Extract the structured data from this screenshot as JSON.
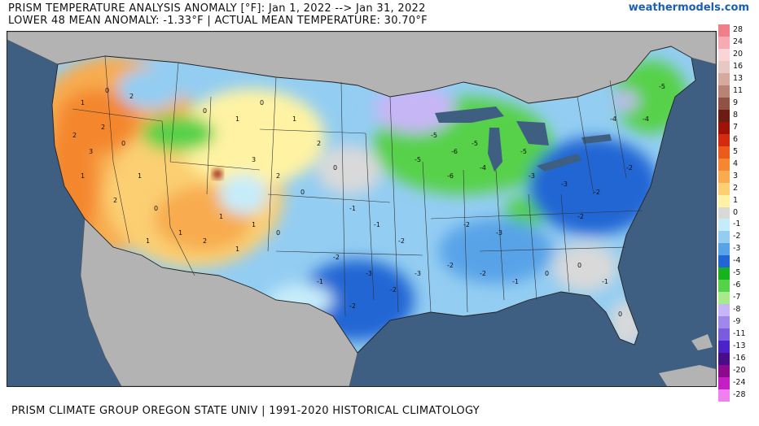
{
  "header": {
    "title": "PRISM TEMPERATURE ANALYSIS ANOMALY [°F]: Jan 1, 2022 --> Jan 31, 2022",
    "subtitle": "LOWER 48 MEAN ANOMALY: -1.33°F | ACTUAL MEAN TEMPERATURE: 30.70°F",
    "brand": "weathermodels.com"
  },
  "footer": {
    "text": "PRISM CLIMATE GROUP OREGON STATE UNIV | 1991-2020 HISTORICAL CLIMATOLOGY"
  },
  "legend": {
    "items": [
      {
        "label": "28",
        "color": "#f07f8a"
      },
      {
        "label": "24",
        "color": "#f6aab1"
      },
      {
        "label": "20",
        "color": "#fbd4d8"
      },
      {
        "label": "16",
        "color": "#e6c9c2"
      },
      {
        "label": "13",
        "color": "#d4a99e"
      },
      {
        "label": "11",
        "color": "#b88275"
      },
      {
        "label": "9",
        "color": "#8f5244"
      },
      {
        "label": "8",
        "color": "#6b1d14"
      },
      {
        "label": "7",
        "color": "#9e1208"
      },
      {
        "label": "6",
        "color": "#d42a10"
      },
      {
        "label": "5",
        "color": "#ec5b19"
      },
      {
        "label": "4",
        "color": "#f4872f"
      },
      {
        "label": "3",
        "color": "#f8ac4f"
      },
      {
        "label": "2",
        "color": "#fbcf72"
      },
      {
        "label": "1",
        "color": "#fff3a3"
      },
      {
        "label": "0",
        "color": "#d9d9d9"
      },
      {
        "label": "-1",
        "color": "#c6ecfa"
      },
      {
        "label": "-2",
        "color": "#93cdf2"
      },
      {
        "label": "-3",
        "color": "#58a3e8"
      },
      {
        "label": "-4",
        "color": "#2166d4"
      },
      {
        "label": "-5",
        "color": "#16b31e"
      },
      {
        "label": "-6",
        "color": "#56d14a"
      },
      {
        "label": "-7",
        "color": "#a6ea8c"
      },
      {
        "label": "-8",
        "color": "#c7b6f6"
      },
      {
        "label": "-9",
        "color": "#9f87ec"
      },
      {
        "label": "-11",
        "color": "#7a5ce0"
      },
      {
        "label": "-13",
        "color": "#4b23c8"
      },
      {
        "label": "-16",
        "color": "#4a0d8a"
      },
      {
        "label": "-20",
        "color": "#8d0a8d"
      },
      {
        "label": "-24",
        "color": "#c41fc4"
      },
      {
        "label": "-28",
        "color": "#f07ff0"
      }
    ]
  },
  "colors": {
    "ocean": "#3f5f82",
    "land_outside": "#b3b3b3"
  }
}
